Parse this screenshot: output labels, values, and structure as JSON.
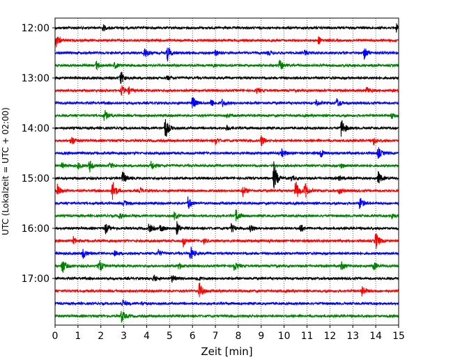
{
  "chart_data": {
    "type": "line",
    "title": "",
    "xlabel": "Zeit  [min]",
    "ylabel": "UTC (Lokalzeit = UTC + 02:00)",
    "xlim": [
      0,
      15
    ],
    "x_ticks": [
      "0",
      "1",
      "2",
      "3",
      "4",
      "5",
      "6",
      "7",
      "8",
      "9",
      "10",
      "11",
      "12",
      "13",
      "14",
      "15"
    ],
    "y_tick_labels": [
      "12:00",
      "13:00",
      "14:00",
      "15:00",
      "16:00",
      "17:00"
    ],
    "start_time": "12:00",
    "row_interval_min": 15,
    "grid": "vertical dotted",
    "colors": [
      "#000000",
      "#ff0000",
      "#0000ff",
      "#008000"
    ],
    "rows": [
      {
        "time": "12:00",
        "events": [
          [
            2.1,
            0.5
          ],
          [
            14.9,
            0.6
          ]
        ]
      },
      {
        "time": "12:15",
        "events": [
          [
            0.05,
            1.0
          ],
          [
            11.5,
            0.6
          ]
        ]
      },
      {
        "time": "12:30",
        "events": [
          [
            3.9,
            0.9
          ],
          [
            4.9,
            1.3
          ],
          [
            7.0,
            0.5
          ],
          [
            9.3,
            0.4
          ],
          [
            10.9,
            0.4
          ],
          [
            13.5,
            1.0
          ]
        ]
      },
      {
        "time": "12:45",
        "events": [
          [
            1.8,
            0.7
          ],
          [
            2.6,
            0.5
          ],
          [
            6.9,
            0.3
          ],
          [
            9.8,
            0.9
          ]
        ]
      },
      {
        "time": "13:00",
        "events": [
          [
            2.85,
            1.3
          ],
          [
            4.9,
            0.4
          ]
        ]
      },
      {
        "time": "13:15",
        "events": [
          [
            2.9,
            0.8
          ],
          [
            3.2,
            0.5
          ],
          [
            8.8,
            0.4
          ],
          [
            13.6,
            0.6
          ]
        ]
      },
      {
        "time": "13:30",
        "events": [
          [
            6.0,
            1.2
          ],
          [
            6.8,
            0.7
          ],
          [
            7.3,
            0.6
          ],
          [
            11.4,
            0.6
          ],
          [
            12.3,
            0.8
          ]
        ]
      },
      {
        "time": "13:45",
        "events": [
          [
            2.15,
            1.0
          ],
          [
            7.5,
            0.3
          ],
          [
            14.7,
            0.6
          ]
        ]
      },
      {
        "time": "14:00",
        "events": [
          [
            4.8,
            2.0
          ],
          [
            7.5,
            0.4
          ],
          [
            12.5,
            1.8
          ]
        ]
      },
      {
        "time": "14:15",
        "events": [
          [
            0.7,
            0.9
          ],
          [
            7.0,
            0.6
          ],
          [
            9.0,
            0.9
          ],
          [
            13.9,
            0.6
          ]
        ]
      },
      {
        "time": "14:30",
        "events": [
          [
            9.9,
            0.6
          ],
          [
            11.6,
            0.8
          ],
          [
            14.1,
            1.0
          ]
        ]
      },
      {
        "time": "14:45",
        "events": [
          [
            0.3,
            0.5
          ],
          [
            1.0,
            0.5
          ],
          [
            1.5,
            1.1
          ],
          [
            2.4,
            0.5
          ],
          [
            4.2,
            0.8
          ],
          [
            12.5,
            0.4
          ]
        ]
      },
      {
        "time": "15:00",
        "events": [
          [
            2.95,
            1.2
          ],
          [
            9.55,
            2.6
          ],
          [
            10.3,
            0.4
          ],
          [
            12.4,
            0.4
          ],
          [
            14.1,
            1.1
          ]
        ]
      },
      {
        "time": "15:15",
        "events": [
          [
            0.1,
            1.0
          ],
          [
            2.5,
            1.9
          ],
          [
            3.7,
            0.5
          ],
          [
            8.2,
            0.9
          ],
          [
            10.5,
            1.9
          ],
          [
            10.9,
            1.4
          ],
          [
            12.4,
            0.5
          ]
        ]
      },
      {
        "time": "15:30",
        "events": [
          [
            3.0,
            0.5
          ],
          [
            5.8,
            1.1
          ],
          [
            13.3,
            1.0
          ]
        ]
      },
      {
        "time": "15:45",
        "events": [
          [
            2.8,
            0.6
          ],
          [
            5.2,
            0.6
          ],
          [
            7.9,
            1.1
          ],
          [
            14.7,
            0.4
          ]
        ]
      },
      {
        "time": "16:00",
        "events": [
          [
            2.2,
            0.9
          ],
          [
            4.1,
            0.8
          ],
          [
            4.6,
            0.7
          ],
          [
            5.3,
            1.2
          ],
          [
            7.7,
            0.8
          ],
          [
            8.5,
            0.7
          ],
          [
            10.7,
            0.8
          ]
        ]
      },
      {
        "time": "16:15",
        "events": [
          [
            0.8,
            0.6
          ],
          [
            5.6,
            0.9
          ],
          [
            6.5,
            0.4
          ],
          [
            14.0,
            1.5
          ]
        ]
      },
      {
        "time": "16:30",
        "events": [
          [
            1.2,
            1.0
          ],
          [
            2.6,
            0.4
          ],
          [
            4.5,
            0.6
          ],
          [
            5.9,
            1.3
          ]
        ]
      },
      {
        "time": "16:45",
        "events": [
          [
            0.3,
            1.4
          ],
          [
            1.9,
            1.3
          ],
          [
            5.4,
            0.6
          ],
          [
            7.8,
            0.9
          ],
          [
            12.5,
            0.7
          ],
          [
            13.9,
            0.7
          ]
        ]
      },
      {
        "time": "17:00",
        "events": [
          [
            4.3,
            0.6
          ],
          [
            5.1,
            0.6
          ],
          [
            6.2,
            0.4
          ]
        ]
      },
      {
        "time": "17:15",
        "events": [
          [
            6.3,
            1.4
          ],
          [
            13.4,
            1.0
          ]
        ]
      },
      {
        "time": "17:30",
        "events": [
          [
            2.95,
            0.6
          ],
          [
            3.8,
            0.3
          ]
        ]
      },
      {
        "time": "17:45",
        "events": [
          [
            2.9,
            1.1
          ]
        ]
      }
    ]
  }
}
